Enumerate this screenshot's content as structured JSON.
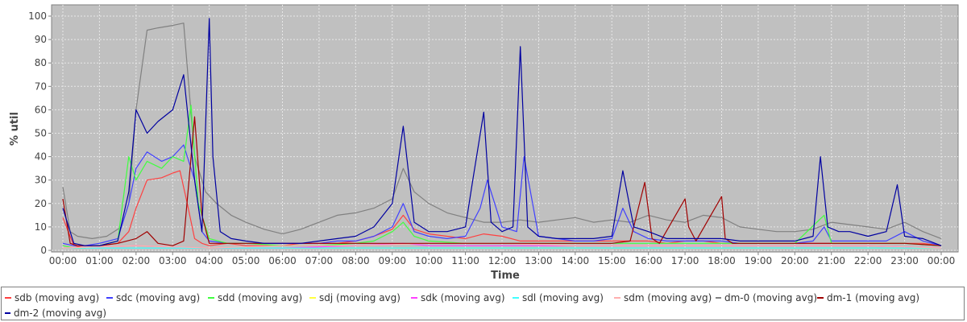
{
  "chart_data": {
    "type": "line",
    "title": "",
    "xlabel": "Time",
    "ylabel": "% util",
    "ylim": [
      0,
      100
    ],
    "yticks": [
      0,
      10,
      20,
      30,
      40,
      50,
      60,
      70,
      80,
      90,
      100
    ],
    "xlim": [
      0,
      24
    ],
    "x_tick_labels": [
      "00:00",
      "01:00",
      "02:00",
      "03:00",
      "04:00",
      "05:00",
      "06:00",
      "07:00",
      "08:00",
      "09:00",
      "10:00",
      "11:00",
      "12:00",
      "13:00",
      "14:00",
      "15:00",
      "16:00",
      "17:00",
      "18:00",
      "19:00",
      "20:00",
      "21:00",
      "22:00",
      "23:00",
      "00:00"
    ],
    "grid": true,
    "legend_position": "bottom",
    "series": [
      {
        "name": "sdb (moving avg)",
        "color": "#ff4040",
        "x": [
          0,
          0.3,
          0.6,
          1.0,
          1.5,
          1.8,
          2.0,
          2.3,
          2.7,
          3.0,
          3.2,
          3.4,
          3.6,
          3.8,
          4.0,
          4.5,
          5.0,
          5.5,
          6.0,
          6.5,
          7.0,
          7.5,
          8.0,
          8.5,
          9.0,
          9.3,
          9.6,
          10.0,
          10.5,
          11.0,
          11.5,
          12.0,
          12.5,
          13.0,
          13.5,
          14.0,
          14.5,
          15.0,
          15.5,
          16.0,
          16.5,
          17.0,
          17.5,
          18.0,
          18.5,
          19.0,
          19.5,
          20.0,
          20.5,
          21.0,
          21.5,
          22.0,
          22.5,
          23.0,
          23.5,
          24.0
        ],
        "y": [
          14,
          2,
          1,
          2,
          3,
          8,
          18,
          30,
          31,
          33,
          34,
          20,
          5,
          3,
          2,
          3,
          2,
          2,
          2,
          3,
          3,
          3,
          4,
          6,
          9,
          15,
          9,
          7,
          6,
          5,
          7,
          6,
          4,
          4,
          4,
          4,
          4,
          4,
          4,
          4,
          3,
          4,
          4,
          3,
          3,
          3,
          3,
          3,
          3,
          3,
          3,
          3,
          3,
          3,
          3,
          2
        ]
      },
      {
        "name": "sdc (moving avg)",
        "color": "#4040ff",
        "x": [
          0,
          0.3,
          0.6,
          1.0,
          1.5,
          1.8,
          2.0,
          2.3,
          2.7,
          3.0,
          3.3,
          3.6,
          3.8,
          4.0,
          4.5,
          5.0,
          5.5,
          6.0,
          6.5,
          7.0,
          7.5,
          8.0,
          8.5,
          9.0,
          9.3,
          9.6,
          10.0,
          10.5,
          11.0,
          11.4,
          11.6,
          12.0,
          12.4,
          12.6,
          13.0,
          13.5,
          14.0,
          14.5,
          15.0,
          15.3,
          15.6,
          16.0,
          16.5,
          17.0,
          17.5,
          18.0,
          18.5,
          19.0,
          19.5,
          20.0,
          20.5,
          20.8,
          21.0,
          21.5,
          22.0,
          22.5,
          23.0,
          23.5,
          24.0
        ],
        "y": [
          3,
          2,
          2,
          3,
          5,
          20,
          35,
          42,
          38,
          40,
          45,
          30,
          8,
          4,
          3,
          3,
          3,
          3,
          3,
          3,
          4,
          4,
          6,
          10,
          20,
          8,
          6,
          5,
          6,
          18,
          30,
          10,
          8,
          40,
          6,
          5,
          4,
          4,
          5,
          18,
          8,
          5,
          4,
          4,
          4,
          4,
          3,
          3,
          3,
          3,
          4,
          10,
          4,
          4,
          4,
          4,
          8,
          4,
          2
        ]
      },
      {
        "name": "sdd (moving avg)",
        "color": "#40ff40",
        "x": [
          0,
          0.3,
          0.6,
          1.0,
          1.5,
          1.8,
          2.0,
          2.3,
          2.7,
          3.0,
          3.3,
          3.5,
          3.7,
          4.0,
          4.5,
          5.0,
          6.0,
          7.0,
          8.0,
          8.5,
          9.0,
          9.3,
          9.6,
          10.0,
          11.0,
          12.0,
          13.0,
          14.0,
          15.0,
          16.0,
          17.0,
          18.0,
          19.0,
          20.0,
          20.8,
          21.0,
          22.0,
          23.0,
          24.0
        ],
        "y": [
          2,
          1,
          1,
          2,
          4,
          40,
          30,
          38,
          35,
          40,
          38,
          62,
          20,
          5,
          3,
          3,
          2,
          2,
          3,
          4,
          8,
          12,
          6,
          4,
          3,
          3,
          3,
          3,
          3,
          3,
          3,
          3,
          3,
          3,
          15,
          3,
          3,
          3,
          2
        ]
      },
      {
        "name": "sdj (moving avg)",
        "color": "#ffff40",
        "x": [
          0,
          2.0,
          4.0,
          6.0,
          8.0,
          10.0,
          12.0,
          14.0,
          16.0,
          18.0,
          20.0,
          22.0,
          24.0
        ],
        "y": [
          1,
          2,
          1,
          1,
          1,
          1,
          1,
          1,
          1,
          1,
          1,
          1,
          1
        ]
      },
      {
        "name": "sdk (moving avg)",
        "color": "#ff40ff",
        "x": [
          0,
          2.0,
          4.0,
          6.0,
          8.0,
          9.3,
          10.0,
          12.0,
          14.0,
          16.0,
          18.0,
          20.0,
          22.0,
          24.0
        ],
        "y": [
          1,
          2,
          1,
          1,
          2,
          3,
          2,
          2,
          2,
          2,
          2,
          2,
          2,
          1
        ]
      },
      {
        "name": "sdl (moving avg)",
        "color": "#40ffff",
        "x": [
          0,
          2.0,
          4.0,
          6.0,
          8.0,
          10.0,
          12.0,
          14.0,
          16.0,
          18.0,
          20.0,
          22.0,
          24.0
        ],
        "y": [
          1,
          1,
          1,
          1,
          1,
          1,
          1,
          1,
          1,
          1,
          1,
          1,
          1
        ]
      },
      {
        "name": "sdm (moving avg)",
        "color": "#ffafaf",
        "x": [
          0,
          2.0,
          4.0,
          6.0,
          8.0,
          10.0,
          12.0,
          14.0,
          16.0,
          18.0,
          20.0,
          22.0,
          24.0
        ],
        "y": [
          1,
          2,
          1,
          2,
          2,
          3,
          3,
          2,
          2,
          2,
          2,
          2,
          1
        ]
      },
      {
        "name": "dm-0 (moving avg)",
        "color": "#808080",
        "x": [
          0,
          0.2,
          0.4,
          0.8,
          1.2,
          1.6,
          1.8,
          2.0,
          2.3,
          2.6,
          3.0,
          3.3,
          3.6,
          3.9,
          4.2,
          4.6,
          5.0,
          5.5,
          6.0,
          6.5,
          7.0,
          7.5,
          8.0,
          8.5,
          9.0,
          9.3,
          9.6,
          10.0,
          10.5,
          11.0,
          11.5,
          12.0,
          12.5,
          13.0,
          13.5,
          14.0,
          14.5,
          15.0,
          15.5,
          16.0,
          16.5,
          17.0,
          17.5,
          18.0,
          18.5,
          19.0,
          19.5,
          20.0,
          20.5,
          21.0,
          21.5,
          22.0,
          22.5,
          23.0,
          23.5,
          24.0
        ],
        "y": [
          27,
          8,
          6,
          5,
          6,
          10,
          20,
          60,
          94,
          95,
          96,
          97,
          40,
          25,
          20,
          15,
          12,
          9,
          7,
          9,
          12,
          15,
          16,
          18,
          22,
          35,
          25,
          20,
          16,
          14,
          12,
          12,
          13,
          12,
          13,
          14,
          12,
          13,
          12,
          15,
          13,
          12,
          15,
          14,
          10,
          9,
          8,
          8,
          9,
          12,
          11,
          10,
          9,
          12,
          8,
          5
        ]
      },
      {
        "name": "dm-1 (moving avg)",
        "color": "#a00000",
        "x": [
          0,
          0.2,
          0.4,
          1.0,
          1.5,
          2.0,
          2.3,
          2.6,
          3.0,
          3.3,
          3.6,
          3.8,
          4.0,
          4.5,
          5.0,
          6.0,
          7.0,
          8.0,
          9.0,
          10.0,
          11.0,
          12.0,
          13.0,
          14.0,
          15.0,
          15.5,
          15.9,
          16.1,
          16.3,
          17.0,
          17.1,
          17.3,
          18.0,
          18.1,
          18.3,
          19.0,
          20.0,
          21.0,
          22.0,
          23.0,
          24.0
        ],
        "y": [
          22,
          3,
          2,
          2,
          3,
          5,
          8,
          3,
          2,
          4,
          57,
          15,
          3,
          3,
          3,
          3,
          3,
          3,
          3,
          3,
          3,
          3,
          3,
          3,
          3,
          4,
          29,
          5,
          3,
          22,
          10,
          4,
          23,
          5,
          3,
          3,
          3,
          3,
          3,
          3,
          2
        ]
      },
      {
        "name": "dm-2 (moving avg)",
        "color": "#0000a0",
        "x": [
          0,
          0.3,
          0.6,
          1.0,
          1.5,
          1.8,
          2.0,
          2.3,
          2.6,
          3.0,
          3.3,
          3.6,
          3.8,
          4.0,
          4.1,
          4.3,
          4.6,
          5.0,
          5.5,
          6.0,
          6.5,
          7.0,
          7.5,
          8.0,
          8.5,
          9.0,
          9.3,
          9.6,
          10.0,
          10.5,
          11.0,
          11.2,
          11.5,
          11.7,
          12.0,
          12.3,
          12.5,
          12.7,
          13.0,
          13.5,
          14.0,
          14.5,
          15.0,
          15.3,
          15.6,
          16.0,
          16.5,
          17.0,
          17.5,
          18.0,
          18.5,
          19.0,
          19.5,
          20.0,
          20.5,
          20.7,
          20.9,
          21.2,
          21.5,
          22.0,
          22.5,
          22.8,
          23.0,
          23.5,
          24.0
        ],
        "y": [
          18,
          3,
          2,
          2,
          4,
          25,
          60,
          50,
          55,
          60,
          75,
          30,
          8,
          99,
          40,
          8,
          5,
          4,
          3,
          3,
          3,
          4,
          5,
          6,
          10,
          20,
          53,
          12,
          8,
          8,
          10,
          30,
          59,
          12,
          8,
          10,
          87,
          10,
          6,
          5,
          5,
          5,
          6,
          34,
          10,
          8,
          5,
          5,
          5,
          5,
          4,
          4,
          4,
          4,
          6,
          40,
          10,
          8,
          8,
          6,
          8,
          28,
          6,
          5,
          2
        ]
      }
    ]
  }
}
